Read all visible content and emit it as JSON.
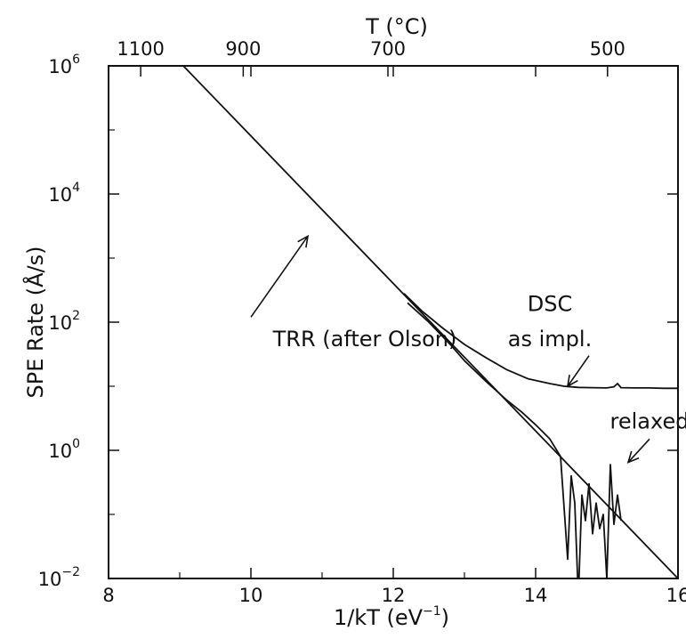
{
  "chart_data": {
    "type": "line",
    "title": "",
    "xlabel": "1/kT (eV",
    "xlabel_sup": "−1",
    "xlabel_close": ")",
    "ylabel": "SPE Rate (Å/s)",
    "top_axis_label": "T (°C)",
    "xlim": [
      8,
      16
    ],
    "ylim": [
      0.01,
      1000000
    ],
    "y_scale": "log",
    "grid": false,
    "legend": "none",
    "x_ticks": [
      8,
      10,
      12,
      14,
      16
    ],
    "x_tick_labels": [
      "8",
      "10",
      "12",
      "14",
      "16"
    ],
    "y_ticks": [
      {
        "value": 0.01,
        "base": "10",
        "exp": "−2"
      },
      {
        "value": 1,
        "base": "10",
        "exp": "0"
      },
      {
        "value": 100,
        "base": "10",
        "exp": "2"
      },
      {
        "value": 10000,
        "base": "10",
        "exp": "4"
      },
      {
        "value": 1000000,
        "base": "10",
        "exp": "6"
      }
    ],
    "top_ticks": [
      {
        "temp_c": 1100,
        "label": "1100"
      },
      {
        "temp_c": 900,
        "label": "900"
      },
      {
        "temp_c": 700,
        "label": "700"
      },
      {
        "temp_c": 500,
        "label": "500"
      }
    ],
    "series": [
      {
        "id": "trr",
        "x": [
          9.05,
          16.0
        ],
        "y": [
          1000000,
          0.01
        ]
      },
      {
        "id": "dsc-as-implanted",
        "x": [
          12.15,
          12.4,
          12.7,
          13.0,
          13.3,
          13.6,
          13.9,
          14.2,
          14.4,
          14.6,
          14.8,
          15.0,
          15.1,
          15.15,
          15.2,
          15.4,
          15.6,
          15.8,
          16.0,
          16.1
        ],
        "y": [
          280,
          150,
          80,
          45,
          28,
          18,
          13,
          11,
          10,
          9.6,
          9.5,
          9.4,
          9.8,
          11,
          9.5,
          9.4,
          9.4,
          9.3,
          9.3,
          9.3
        ]
      },
      {
        "id": "dsc-relaxed",
        "x": [
          12.2,
          12.5,
          12.8,
          13.0,
          13.3,
          13.6,
          13.8,
          14.0,
          14.2,
          14.35,
          14.45,
          14.5,
          14.55,
          14.6,
          14.65,
          14.7,
          14.75,
          14.8,
          14.85,
          14.9,
          14.95,
          15.0,
          15.05,
          15.1,
          15.15,
          15.2
        ],
        "y": [
          200,
          100,
          45,
          25,
          12,
          6,
          4,
          2.5,
          1.5,
          0.8,
          0.02,
          0.4,
          0.15,
          0.005,
          0.2,
          0.08,
          0.3,
          0.05,
          0.15,
          0.06,
          0.1,
          0.01,
          0.6,
          0.07,
          0.2,
          0.08
        ]
      }
    ],
    "annotations": [
      {
        "text": "TRR (after Olson)",
        "x": 11.6,
        "y": 42,
        "arrow_from": [
          10.0,
          120
        ],
        "arrow_to": [
          10.8,
          2200
        ]
      },
      {
        "text": "DSC",
        "x": 14.2,
        "y": 150
      },
      {
        "text": "as impl.",
        "x": 14.2,
        "y": 42,
        "arrow_from": [
          14.75,
          30
        ],
        "arrow_to": [
          14.45,
          10
        ]
      },
      {
        "text": "relaxed",
        "x": 15.6,
        "y": 2.2,
        "arrow_from": [
          15.6,
          1.5
        ],
        "arrow_to": [
          15.3,
          0.65
        ]
      }
    ]
  }
}
